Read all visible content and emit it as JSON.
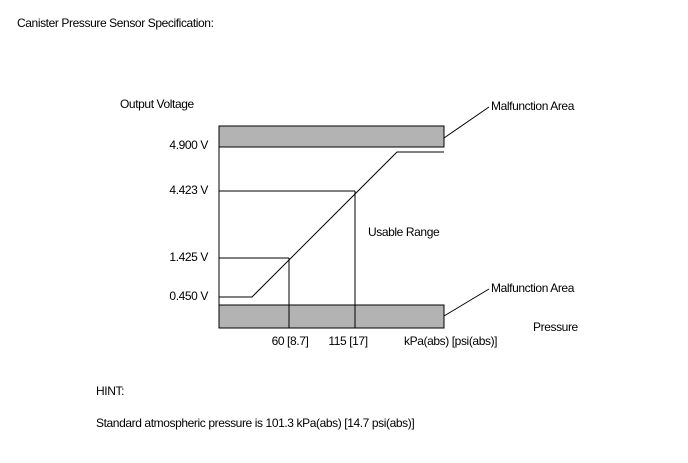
{
  "header": {
    "title": "Canister Pressure Sensor Specification:"
  },
  "diagram": {
    "y_axis_label": "Output Voltage",
    "y_labels": [
      "4.900 V",
      "4.423 V",
      "1.425 V",
      "0.450 V"
    ],
    "x_labels": [
      "60 [8.7]",
      "115 [17]"
    ],
    "x_unit": "kPa(abs) [psi(abs)]",
    "x_axis_label": "Pressure",
    "usable_range": "Usable Range",
    "malfunction_labels": [
      "Malfunction Area",
      "Malfunction Area"
    ]
  },
  "hint": {
    "label": "HINT:",
    "text": "Standard atmospheric pressure is 101.3 kPa(abs) [14.7 psi(abs)]"
  }
}
